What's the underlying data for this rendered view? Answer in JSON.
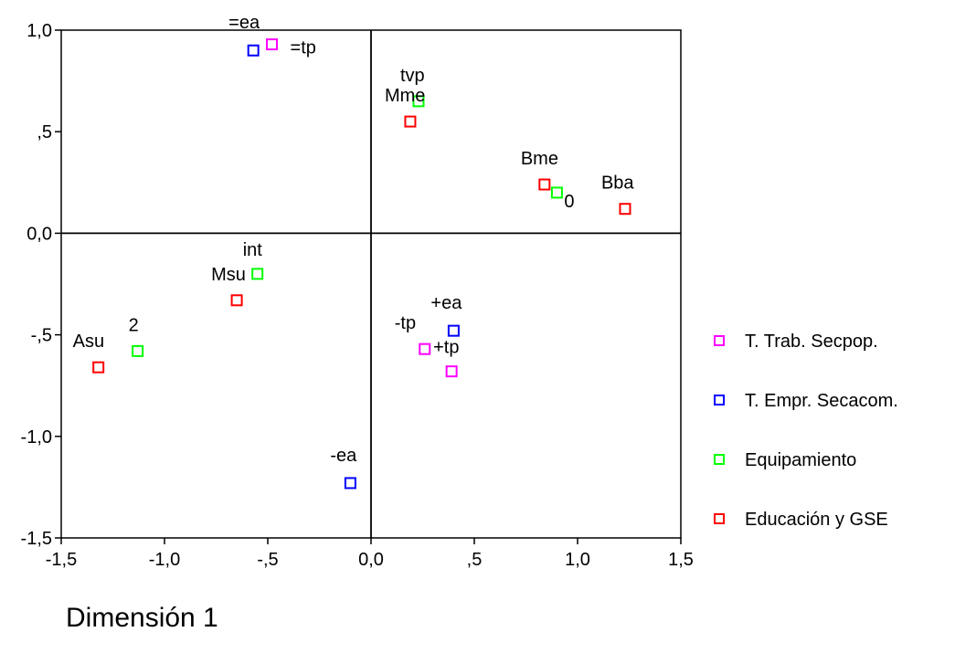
{
  "chart_data": {
    "type": "scatter",
    "xlabel": "Dimensión 1",
    "ylabel": "",
    "xlim": [
      -1.5,
      1.5
    ],
    "ylim": [
      -1.5,
      1.0
    ],
    "x_ticks": [
      -1.5,
      -1.0,
      -0.5,
      0.0,
      0.5,
      1.0,
      1.5
    ],
    "x_tick_labels": [
      "-1,5",
      "-1,0",
      "-,5",
      "0,0",
      ",5",
      "1,0",
      "1,5"
    ],
    "y_ticks": [
      1.0,
      0.5,
      0.0,
      -0.5,
      -1.0,
      -1.5
    ],
    "y_tick_labels": [
      "1,0",
      ",5",
      "0,0",
      "-,5",
      "-1,0",
      "-1,5"
    ],
    "reference_lines": {
      "x": 0,
      "y": 0
    },
    "legend_position": "right",
    "series": [
      {
        "name": "T. Trab. Secpop.",
        "color": "#ff00ff",
        "points": [
          {
            "x": -0.48,
            "y": 0.93,
            "label": "=tp"
          },
          {
            "x": 0.26,
            "y": -0.57,
            "label": "-tp"
          },
          {
            "x": 0.39,
            "y": -0.68,
            "label": "+tp"
          }
        ]
      },
      {
        "name": "T. Empr. Secacom.",
        "color": "#0000ff",
        "points": [
          {
            "x": -0.57,
            "y": 0.9,
            "label": "=ea"
          },
          {
            "x": 0.4,
            "y": -0.48,
            "label": "+ea"
          },
          {
            "x": -0.1,
            "y": -1.23,
            "label": "-ea"
          }
        ]
      },
      {
        "name": "Equipamiento",
        "color": "#00ff00",
        "points": [
          {
            "x": 0.23,
            "y": 0.65,
            "label": "tvp"
          },
          {
            "x": 0.9,
            "y": 0.2,
            "label": "0"
          },
          {
            "x": -0.55,
            "y": -0.2,
            "label": "int"
          },
          {
            "x": -1.13,
            "y": -0.58,
            "label": "2"
          }
        ]
      },
      {
        "name": "Educación y GSE",
        "color": "#ff0000",
        "points": [
          {
            "x": 0.19,
            "y": 0.55,
            "label": "Mme"
          },
          {
            "x": 0.84,
            "y": 0.24,
            "label": "Bme"
          },
          {
            "x": 1.23,
            "y": 0.12,
            "label": "Bba"
          },
          {
            "x": -0.65,
            "y": -0.33,
            "label": "Msu"
          },
          {
            "x": -1.32,
            "y": -0.66,
            "label": "Asu"
          }
        ]
      }
    ]
  }
}
